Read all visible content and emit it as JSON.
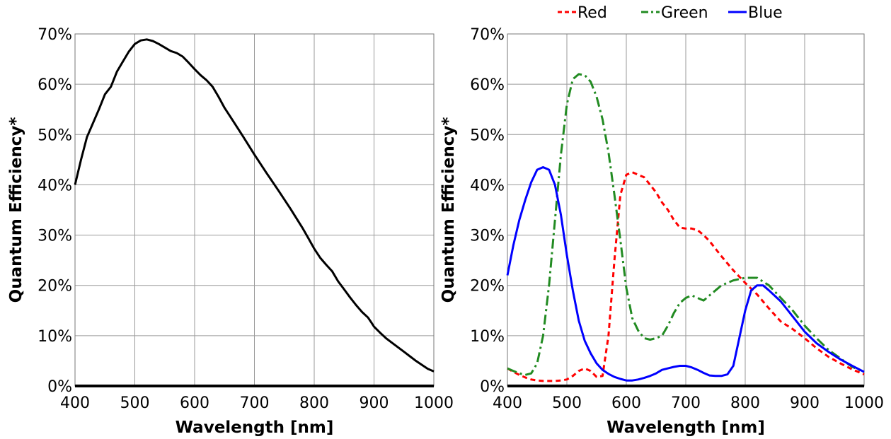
{
  "chart_data": [
    {
      "type": "line",
      "xlabel": "Wavelength [nm]",
      "ylabel": "Quantum Efficiency*",
      "xlim": [
        400,
        1000
      ],
      "ylim": [
        0,
        70
      ],
      "x_ticks": [
        400,
        500,
        600,
        700,
        800,
        900,
        1000
      ],
      "y_ticks": [
        "0%",
        "10%",
        "20%",
        "30%",
        "40%",
        "50%",
        "60%",
        "70%"
      ],
      "grid": true,
      "legend": "none",
      "series": [
        {
          "color": "#000000",
          "dash": "solid",
          "x": [
            400,
            410,
            420,
            440,
            450,
            460,
            470,
            480,
            490,
            500,
            510,
            520,
            530,
            540,
            550,
            560,
            570,
            580,
            590,
            600,
            610,
            620,
            630,
            640,
            650,
            660,
            680,
            700,
            720,
            740,
            760,
            780,
            790,
            800,
            810,
            820,
            830,
            840,
            850,
            860,
            870,
            880,
            890,
            895,
            900,
            910,
            920,
            930,
            940,
            950,
            960,
            970,
            980,
            990,
            1000
          ],
          "y": [
            40,
            45,
            49.5,
            55,
            58,
            59.5,
            62.5,
            64.5,
            66.5,
            68,
            68.7,
            68.9,
            68.6,
            68,
            67.3,
            66.6,
            66.2,
            65.5,
            64.3,
            63,
            61.8,
            60.8,
            59.5,
            57.5,
            55.3,
            53.5,
            49.8,
            46,
            42.4,
            38.9,
            35.3,
            31.5,
            29.4,
            27.3,
            25.5,
            24.1,
            22.8,
            20.8,
            19.2,
            17.6,
            16.1,
            14.7,
            13.6,
            12.7,
            11.8,
            10.6,
            9.5,
            8.6,
            7.7,
            6.8,
            5.9,
            5.0,
            4.2,
            3.4,
            2.9
          ]
        }
      ]
    },
    {
      "type": "line",
      "xlabel": "Wavelength [nm]",
      "ylabel": "Quantum Efficiency*",
      "xlim": [
        400,
        1000
      ],
      "ylim": [
        0,
        70
      ],
      "x_ticks": [
        400,
        500,
        600,
        700,
        800,
        900,
        1000
      ],
      "y_ticks": [
        "0%",
        "10%",
        "20%",
        "30%",
        "40%",
        "50%",
        "60%",
        "70%"
      ],
      "grid": true,
      "legend": "top",
      "series": [
        {
          "name": "Red",
          "color": "#ff0000",
          "dash": "dashed",
          "x": [
            400,
            410,
            420,
            430,
            440,
            450,
            460,
            470,
            480,
            490,
            500,
            510,
            520,
            530,
            540,
            550,
            560,
            570,
            580,
            590,
            600,
            610,
            620,
            630,
            640,
            650,
            660,
            670,
            680,
            690,
            700,
            710,
            720,
            730,
            740,
            760,
            780,
            800,
            820,
            840,
            860,
            880,
            900,
            920,
            940,
            960,
            980,
            1000
          ],
          "y": [
            3.5,
            2.8,
            2.2,
            1.7,
            1.3,
            1.1,
            1.0,
            1.0,
            1.0,
            1.1,
            1.3,
            2.0,
            3.0,
            3.5,
            3.0,
            1.8,
            2.0,
            10,
            25,
            38,
            42,
            42.5,
            42,
            41.5,
            40,
            38.5,
            36.5,
            35,
            33,
            31.5,
            31.3,
            31.3,
            31,
            30,
            28.8,
            25.8,
            23,
            20.5,
            18.2,
            15.4,
            12.8,
            11.3,
            9.5,
            7.5,
            5.8,
            4.5,
            3.3,
            2.3
          ]
        },
        {
          "name": "Green",
          "color": "#228b22",
          "dash": "dashdot",
          "x": [
            400,
            410,
            420,
            430,
            440,
            450,
            460,
            470,
            480,
            490,
            500,
            510,
            520,
            530,
            540,
            550,
            560,
            570,
            580,
            590,
            600,
            610,
            620,
            630,
            640,
            650,
            660,
            670,
            680,
            690,
            700,
            710,
            720,
            730,
            740,
            760,
            780,
            800,
            820,
            840,
            860,
            880,
            900,
            920,
            940,
            960,
            980,
            1000
          ],
          "y": [
            3.5,
            3.0,
            2.5,
            2.2,
            2.5,
            4.5,
            10,
            20,
            33,
            46,
            56,
            61,
            62,
            61.8,
            60.5,
            57.5,
            53,
            46.5,
            38,
            29,
            19.5,
            13.5,
            11,
            9.5,
            9.2,
            9.5,
            10,
            12,
            14.5,
            16.5,
            17.5,
            18,
            17.5,
            17,
            18,
            20,
            21,
            21.5,
            21.5,
            20,
            17.5,
            15,
            12,
            9.5,
            7.2,
            5.5,
            3.8,
            2.8
          ]
        },
        {
          "name": "Blue",
          "color": "#0000ff",
          "dash": "solid",
          "x": [
            400,
            410,
            420,
            430,
            440,
            450,
            460,
            470,
            480,
            490,
            500,
            510,
            520,
            530,
            540,
            550,
            560,
            570,
            580,
            590,
            600,
            610,
            620,
            630,
            640,
            650,
            660,
            670,
            680,
            690,
            700,
            710,
            720,
            730,
            740,
            750,
            760,
            770,
            780,
            790,
            800,
            810,
            820,
            830,
            840,
            860,
            880,
            900,
            920,
            940,
            960,
            980,
            1000
          ],
          "y": [
            22,
            28,
            33,
            37,
            40.5,
            43,
            43.5,
            43,
            40,
            34,
            26,
            19,
            13,
            9,
            6.5,
            4.5,
            3.2,
            2.4,
            1.8,
            1.4,
            1.1,
            1.1,
            1.3,
            1.6,
            2.0,
            2.5,
            3.2,
            3.5,
            3.8,
            4.0,
            4.0,
            3.7,
            3.2,
            2.6,
            2.1,
            2.0,
            2.0,
            2.3,
            4.0,
            9.5,
            15,
            19,
            20,
            20,
            19,
            16.8,
            13.8,
            10.8,
            8.5,
            6.8,
            5.3,
            4.0,
            2.8
          ]
        }
      ]
    }
  ]
}
